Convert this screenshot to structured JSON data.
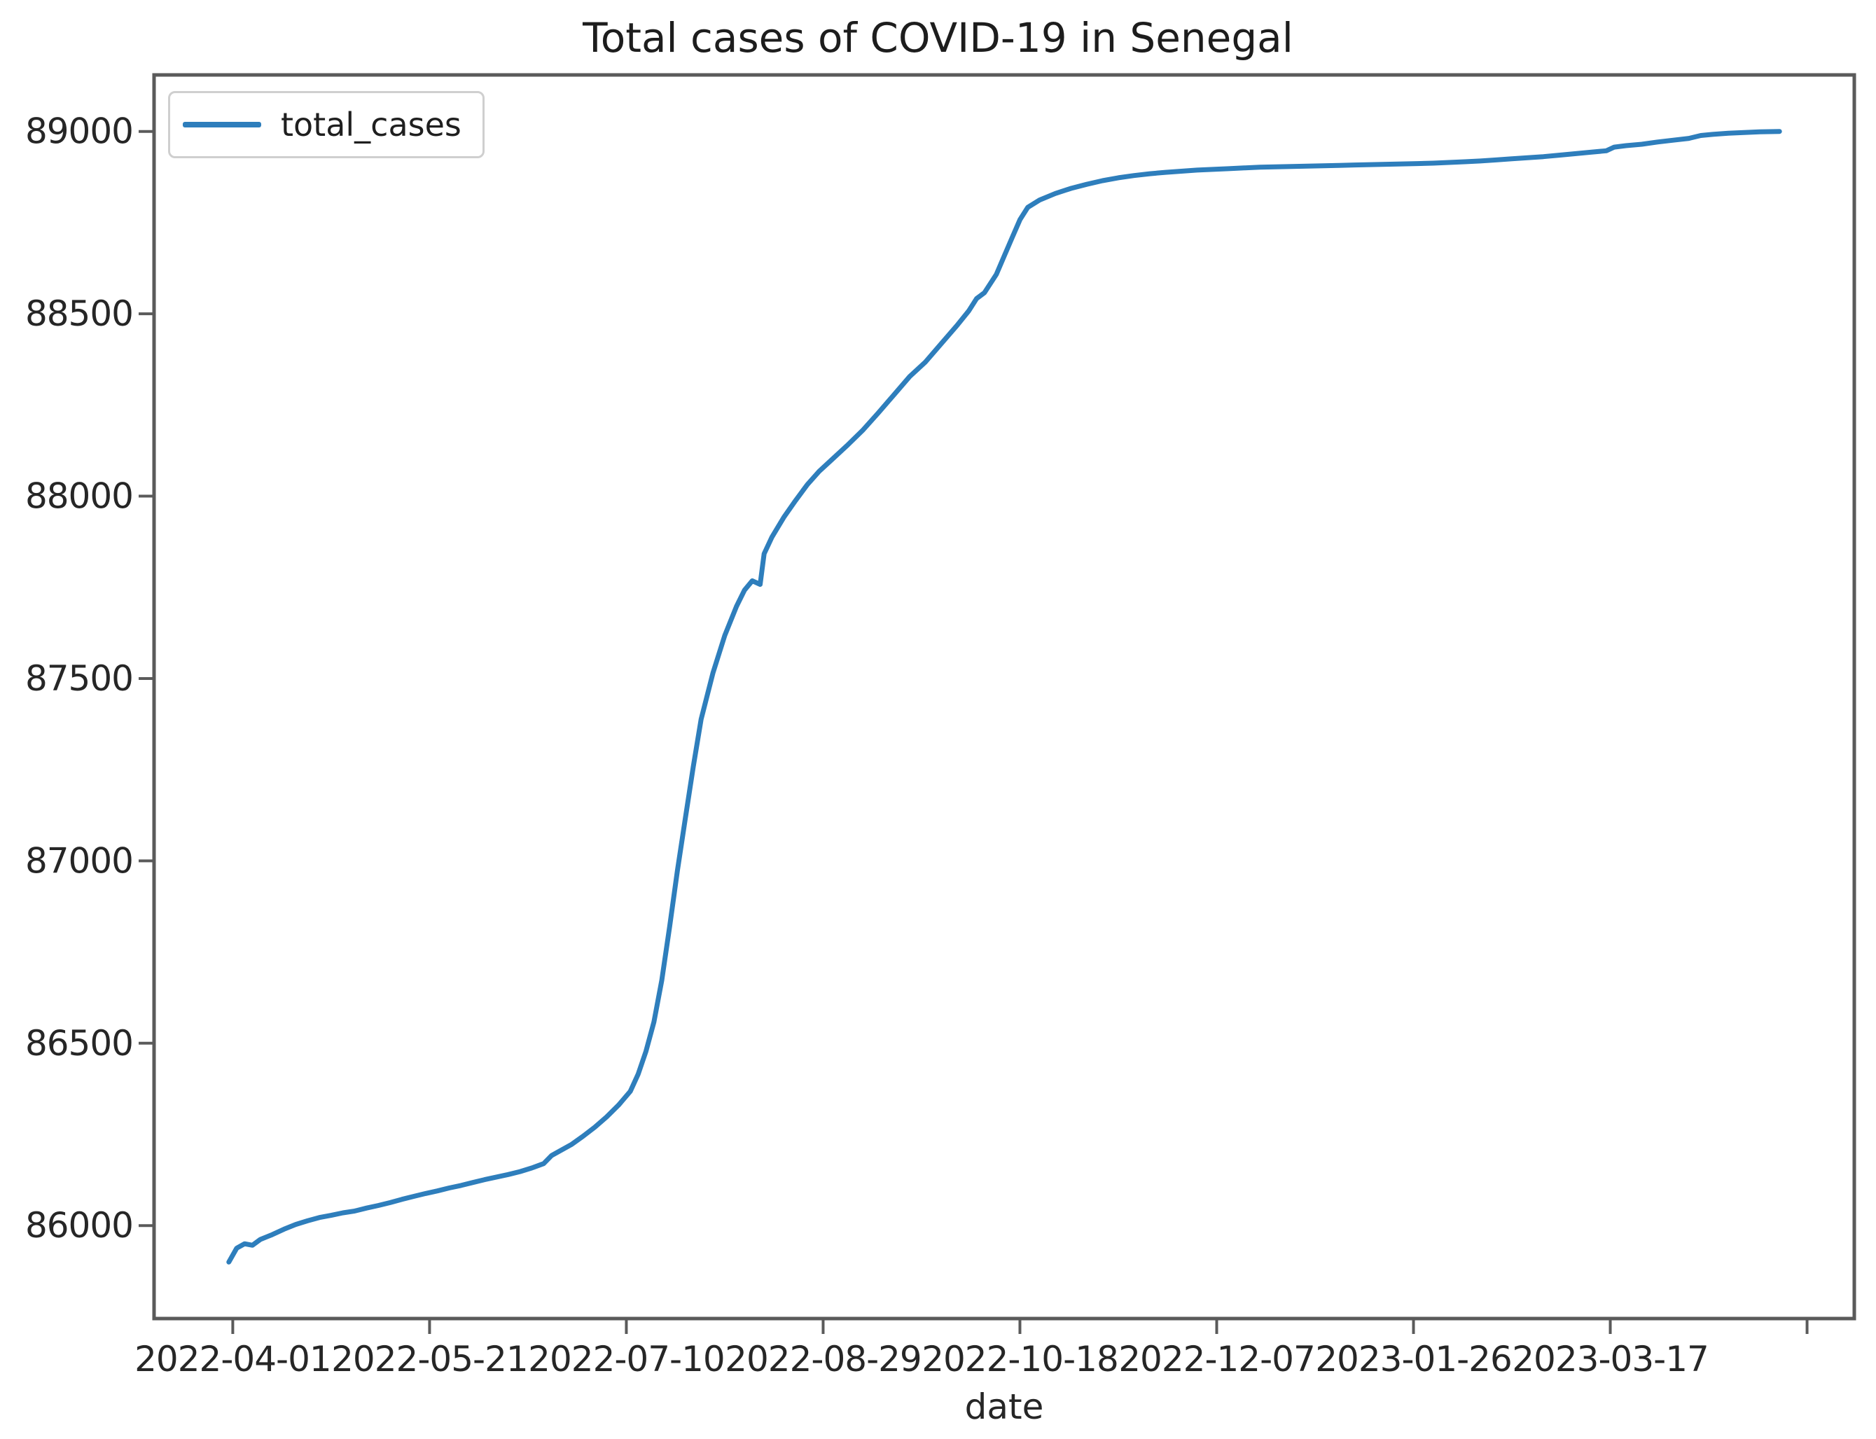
{
  "chart_data": {
    "type": "line",
    "title": "Total cases of COVID-19 in Senegal",
    "xlabel": "date",
    "ylabel": "",
    "legend": [
      "total_cases"
    ],
    "legend_position": "upper left",
    "grid": false,
    "colors": {
      "line": "#2e7ebc",
      "spine": "#5a5a5a",
      "text": "#262626"
    },
    "x_tick_dates": [
      "2022-04-01",
      "2022-05-21",
      "2022-07-10",
      "2022-08-29",
      "2022-10-18",
      "2022-12-07",
      "2023-01-26",
      "2023-03-17",
      "2023-05-06"
    ],
    "x_tick_labels": [
      "2022-04-01",
      "2022-05-21",
      "2022-07-10",
      "2022-08-29",
      "2022-10-18",
      "2022-12-07",
      "2023-01-26",
      "2023-03-17",
      ""
    ],
    "y_ticks": [
      89000,
      88500,
      88000,
      87500,
      87000,
      86500,
      86000
    ],
    "xlim": [
      "2022-03-12",
      "2023-05-18"
    ],
    "ylim": [
      85745,
      89155
    ],
    "series": [
      {
        "name": "total_cases",
        "points": [
          [
            "2022-03-31",
            85900
          ],
          [
            "2022-04-02",
            85938
          ],
          [
            "2022-04-04",
            85950
          ],
          [
            "2022-04-06",
            85946
          ],
          [
            "2022-04-08",
            85962
          ],
          [
            "2022-04-11",
            85975
          ],
          [
            "2022-04-14",
            85990
          ],
          [
            "2022-04-17",
            86003
          ],
          [
            "2022-04-20",
            86013
          ],
          [
            "2022-04-23",
            86022
          ],
          [
            "2022-04-26",
            86028
          ],
          [
            "2022-04-29",
            86035
          ],
          [
            "2022-05-02",
            86040
          ],
          [
            "2022-05-05",
            86048
          ],
          [
            "2022-05-08",
            86055
          ],
          [
            "2022-05-11",
            86063
          ],
          [
            "2022-05-14",
            86072
          ],
          [
            "2022-05-17",
            86080
          ],
          [
            "2022-05-20",
            86088
          ],
          [
            "2022-05-23",
            86095
          ],
          [
            "2022-05-26",
            86103
          ],
          [
            "2022-05-29",
            86110
          ],
          [
            "2022-06-01",
            86118
          ],
          [
            "2022-06-04",
            86126
          ],
          [
            "2022-06-07",
            86133
          ],
          [
            "2022-06-10",
            86140
          ],
          [
            "2022-06-13",
            86148
          ],
          [
            "2022-06-16",
            86158
          ],
          [
            "2022-06-19",
            86170
          ],
          [
            "2022-06-21",
            86192
          ],
          [
            "2022-06-23",
            86204
          ],
          [
            "2022-06-26",
            86222
          ],
          [
            "2022-06-29",
            86245
          ],
          [
            "2022-07-02",
            86270
          ],
          [
            "2022-07-05",
            86298
          ],
          [
            "2022-07-08",
            86330
          ],
          [
            "2022-07-11",
            86368
          ],
          [
            "2022-07-13",
            86415
          ],
          [
            "2022-07-15",
            86478
          ],
          [
            "2022-07-17",
            86558
          ],
          [
            "2022-07-19",
            86672
          ],
          [
            "2022-07-21",
            86820
          ],
          [
            "2022-07-23",
            86975
          ],
          [
            "2022-07-25",
            87118
          ],
          [
            "2022-07-27",
            87258
          ],
          [
            "2022-07-29",
            87388
          ],
          [
            "2022-08-01",
            87515
          ],
          [
            "2022-08-04",
            87618
          ],
          [
            "2022-08-07",
            87698
          ],
          [
            "2022-08-09",
            87742
          ],
          [
            "2022-08-11",
            87768
          ],
          [
            "2022-08-13",
            87758
          ],
          [
            "2022-08-14",
            87842
          ],
          [
            "2022-08-16",
            87888
          ],
          [
            "2022-08-19",
            87942
          ],
          [
            "2022-08-22",
            87988
          ],
          [
            "2022-08-25",
            88032
          ],
          [
            "2022-08-28",
            88068
          ],
          [
            "2022-08-31",
            88098
          ],
          [
            "2022-09-04",
            88138
          ],
          [
            "2022-09-08",
            88180
          ],
          [
            "2022-09-12",
            88228
          ],
          [
            "2022-09-16",
            88278
          ],
          [
            "2022-09-20",
            88328
          ],
          [
            "2022-09-24",
            88368
          ],
          [
            "2022-09-28",
            88418
          ],
          [
            "2022-10-02",
            88468
          ],
          [
            "2022-10-05",
            88508
          ],
          [
            "2022-10-07",
            88542
          ],
          [
            "2022-10-09",
            88558
          ],
          [
            "2022-10-12",
            88608
          ],
          [
            "2022-10-14",
            88658
          ],
          [
            "2022-10-16",
            88708
          ],
          [
            "2022-10-18",
            88758
          ],
          [
            "2022-10-20",
            88792
          ],
          [
            "2022-10-23",
            88812
          ],
          [
            "2022-10-27",
            88830
          ],
          [
            "2022-10-31",
            88844
          ],
          [
            "2022-11-04",
            88855
          ],
          [
            "2022-11-08",
            88865
          ],
          [
            "2022-11-12",
            88873
          ],
          [
            "2022-11-16",
            88879
          ],
          [
            "2022-11-20",
            88884
          ],
          [
            "2022-11-24",
            88888
          ],
          [
            "2022-11-28",
            88891
          ],
          [
            "2022-12-02",
            88894
          ],
          [
            "2022-12-06",
            88896
          ],
          [
            "2022-12-10",
            88898
          ],
          [
            "2022-12-14",
            88900
          ],
          [
            "2022-12-18",
            88902
          ],
          [
            "2022-12-22",
            88903
          ],
          [
            "2022-12-26",
            88904
          ],
          [
            "2022-12-30",
            88905
          ],
          [
            "2023-01-03",
            88906
          ],
          [
            "2023-01-07",
            88907
          ],
          [
            "2023-01-11",
            88908
          ],
          [
            "2023-01-15",
            88909
          ],
          [
            "2023-01-19",
            88910
          ],
          [
            "2023-01-23",
            88911
          ],
          [
            "2023-01-27",
            88912
          ],
          [
            "2023-01-31",
            88913
          ],
          [
            "2023-02-04",
            88915
          ],
          [
            "2023-02-08",
            88917
          ],
          [
            "2023-02-12",
            88919
          ],
          [
            "2023-02-16",
            88922
          ],
          [
            "2023-02-20",
            88925
          ],
          [
            "2023-02-24",
            88928
          ],
          [
            "2023-02-28",
            88931
          ],
          [
            "2023-03-04",
            88935
          ],
          [
            "2023-03-08",
            88939
          ],
          [
            "2023-03-12",
            88943
          ],
          [
            "2023-03-16",
            88947
          ],
          [
            "2023-03-18",
            88957
          ],
          [
            "2023-03-21",
            88961
          ],
          [
            "2023-03-25",
            88965
          ],
          [
            "2023-03-29",
            88971
          ],
          [
            "2023-04-02",
            88976
          ],
          [
            "2023-04-06",
            88981
          ],
          [
            "2023-04-09",
            88989
          ],
          [
            "2023-04-12",
            88992
          ],
          [
            "2023-04-16",
            88995
          ],
          [
            "2023-04-20",
            88997
          ],
          [
            "2023-04-24",
            88999
          ],
          [
            "2023-04-29",
            89000
          ]
        ]
      }
    ]
  }
}
